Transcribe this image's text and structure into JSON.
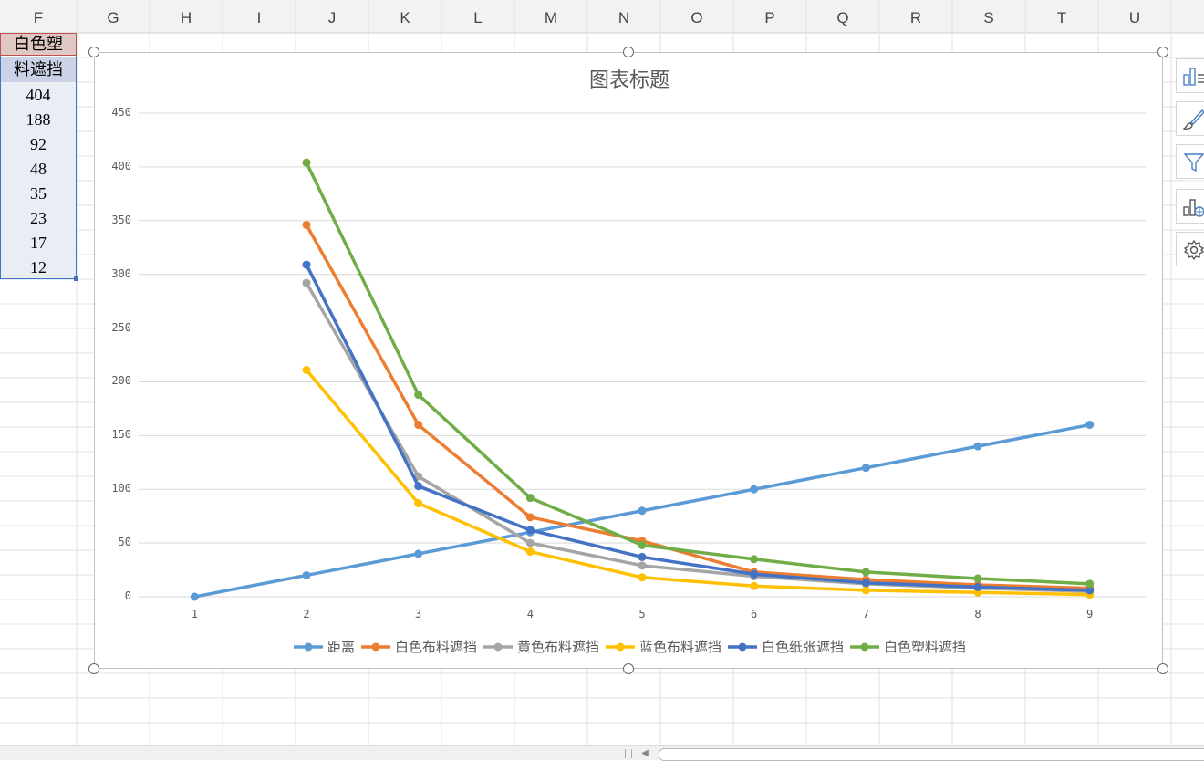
{
  "sheet": {
    "columns": [
      "F",
      "G",
      "H",
      "I",
      "J",
      "K",
      "L",
      "M",
      "N",
      "O",
      "P",
      "Q",
      "R",
      "S",
      "T",
      "U"
    ],
    "f_header": [
      "白色塑",
      "料遮挡"
    ],
    "f_values": [
      "404",
      "188",
      "92",
      "48",
      "35",
      "23",
      "17",
      "12"
    ]
  },
  "chart_data": {
    "type": "line",
    "title": "图表标题",
    "categories": [
      1,
      2,
      3,
      4,
      5,
      6,
      7,
      8,
      9
    ],
    "ylim": [
      0,
      450
    ],
    "yticks": [
      0,
      50,
      100,
      150,
      200,
      250,
      300,
      350,
      400,
      450
    ],
    "grid": true,
    "legend_position": "bottom",
    "series": [
      {
        "name": "距离",
        "color": "#5b9bd5",
        "values": [
          0,
          20,
          40,
          60,
          80,
          100,
          120,
          140,
          160
        ]
      },
      {
        "name": "白色布料遮挡",
        "color": "#ed7d31",
        "values": [
          null,
          346,
          160,
          74,
          52,
          23,
          16,
          11,
          8
        ]
      },
      {
        "name": "黄色布料遮挡",
        "color": "#a5a5a5",
        "values": [
          null,
          292,
          112,
          50,
          29,
          19,
          12,
          8,
          5
        ]
      },
      {
        "name": "蓝色布料遮挡",
        "color": "#ffc000",
        "values": [
          null,
          211,
          87,
          42,
          18,
          10,
          6,
          4,
          2
        ]
      },
      {
        "name": "白色纸张遮挡",
        "color": "#4472c4",
        "values": [
          null,
          309,
          103,
          62,
          37,
          21,
          13,
          9,
          6
        ]
      },
      {
        "name": "白色塑料遮挡",
        "color": "#70ad47",
        "values": [
          null,
          404,
          188,
          92,
          48,
          35,
          23,
          17,
          12
        ]
      }
    ]
  },
  "side_tools": [
    "chart-elements-icon",
    "chart-style-icon",
    "chart-filter-icon",
    "chart-data-icon",
    "chart-settings-icon"
  ]
}
